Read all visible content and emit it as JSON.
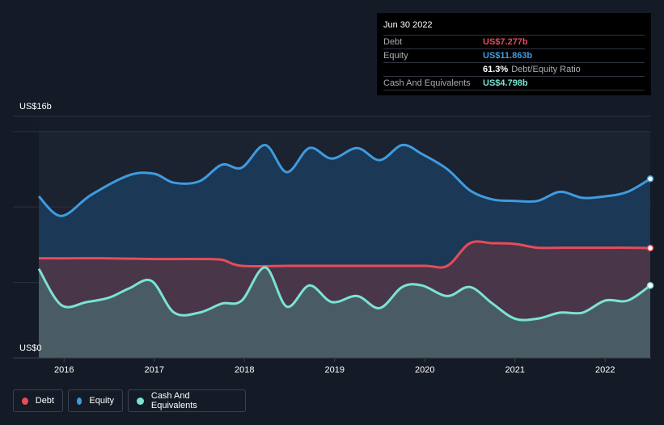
{
  "tooltip": {
    "date": "Jun 30 2022",
    "rows": [
      {
        "label": "Debt",
        "value": "US$7.277b",
        "color": "#e64c5a"
      },
      {
        "label": "Equity",
        "value": "US$11.863b",
        "color": "#3f9be0"
      },
      {
        "label": "",
        "value": "61.3%",
        "extra": "Debt/Equity Ratio",
        "color": "#ffffff"
      },
      {
        "label": "Cash And Equivalents",
        "value": "US$4.798b",
        "color": "#7be3d5"
      }
    ]
  },
  "legend": [
    {
      "label": "Debt",
      "color": "#e64c5a"
    },
    {
      "label": "Equity",
      "color": "#3f9be0"
    },
    {
      "label": "Cash And Equivalents",
      "color": "#7be3d5"
    }
  ],
  "chart_data": {
    "type": "area",
    "ylabel_top": "US$16b",
    "ylabel_bottom": "US$0",
    "ylim": [
      0,
      16
    ],
    "xlim": [
      2015.72,
      2022.5
    ],
    "x_ticks": [
      "2016",
      "2017",
      "2018",
      "2019",
      "2020",
      "2021",
      "2022"
    ],
    "x_tick_values": [
      2016,
      2017,
      2018,
      2019,
      2020,
      2021,
      2022
    ],
    "grid": true,
    "series": [
      {
        "name": "Equity",
        "color": "#3f9be0",
        "points": [
          [
            2015.72,
            10.7
          ],
          [
            2015.97,
            9.4
          ],
          [
            2016.3,
            10.8
          ],
          [
            2016.72,
            12.1
          ],
          [
            2017.0,
            12.2
          ],
          [
            2017.22,
            11.6
          ],
          [
            2017.5,
            11.7
          ],
          [
            2017.75,
            12.8
          ],
          [
            2017.97,
            12.6
          ],
          [
            2018.23,
            14.1
          ],
          [
            2018.47,
            12.3
          ],
          [
            2018.72,
            13.9
          ],
          [
            2018.97,
            13.2
          ],
          [
            2019.25,
            13.9
          ],
          [
            2019.5,
            13.1
          ],
          [
            2019.75,
            14.1
          ],
          [
            2019.97,
            13.5
          ],
          [
            2020.25,
            12.5
          ],
          [
            2020.5,
            11.1
          ],
          [
            2020.75,
            10.5
          ],
          [
            2021.0,
            10.4
          ],
          [
            2021.25,
            10.4
          ],
          [
            2021.5,
            11.0
          ],
          [
            2021.75,
            10.6
          ],
          [
            2022.0,
            10.7
          ],
          [
            2022.25,
            11.0
          ],
          [
            2022.5,
            11.863
          ]
        ]
      },
      {
        "name": "Debt",
        "color": "#e64c5a",
        "points": [
          [
            2015.72,
            6.6
          ],
          [
            2016.0,
            6.6
          ],
          [
            2016.5,
            6.6
          ],
          [
            2017.0,
            6.55
          ],
          [
            2017.5,
            6.55
          ],
          [
            2017.75,
            6.5
          ],
          [
            2017.97,
            6.1
          ],
          [
            2018.5,
            6.1
          ],
          [
            2019.0,
            6.1
          ],
          [
            2019.5,
            6.1
          ],
          [
            2020.0,
            6.1
          ],
          [
            2020.25,
            6.1
          ],
          [
            2020.5,
            7.6
          ],
          [
            2020.75,
            7.6
          ],
          [
            2021.0,
            7.55
          ],
          [
            2021.25,
            7.3
          ],
          [
            2021.5,
            7.3
          ],
          [
            2021.75,
            7.3
          ],
          [
            2022.0,
            7.3
          ],
          [
            2022.25,
            7.3
          ],
          [
            2022.5,
            7.277
          ]
        ]
      },
      {
        "name": "Cash And Equivalents",
        "color": "#7be3d5",
        "points": [
          [
            2015.72,
            5.9
          ],
          [
            2015.97,
            3.5
          ],
          [
            2016.25,
            3.7
          ],
          [
            2016.5,
            4.0
          ],
          [
            2016.72,
            4.6
          ],
          [
            2016.97,
            5.1
          ],
          [
            2017.22,
            3.0
          ],
          [
            2017.5,
            3.0
          ],
          [
            2017.75,
            3.6
          ],
          [
            2017.97,
            3.8
          ],
          [
            2018.23,
            6.0
          ],
          [
            2018.47,
            3.4
          ],
          [
            2018.72,
            4.8
          ],
          [
            2018.97,
            3.7
          ],
          [
            2019.25,
            4.1
          ],
          [
            2019.5,
            3.3
          ],
          [
            2019.75,
            4.7
          ],
          [
            2019.97,
            4.8
          ],
          [
            2020.25,
            4.1
          ],
          [
            2020.5,
            4.7
          ],
          [
            2020.75,
            3.6
          ],
          [
            2021.0,
            2.6
          ],
          [
            2021.25,
            2.6
          ],
          [
            2021.5,
            3.0
          ],
          [
            2021.75,
            3.0
          ],
          [
            2022.0,
            3.8
          ],
          [
            2022.25,
            3.8
          ],
          [
            2022.5,
            4.798
          ]
        ]
      }
    ]
  }
}
